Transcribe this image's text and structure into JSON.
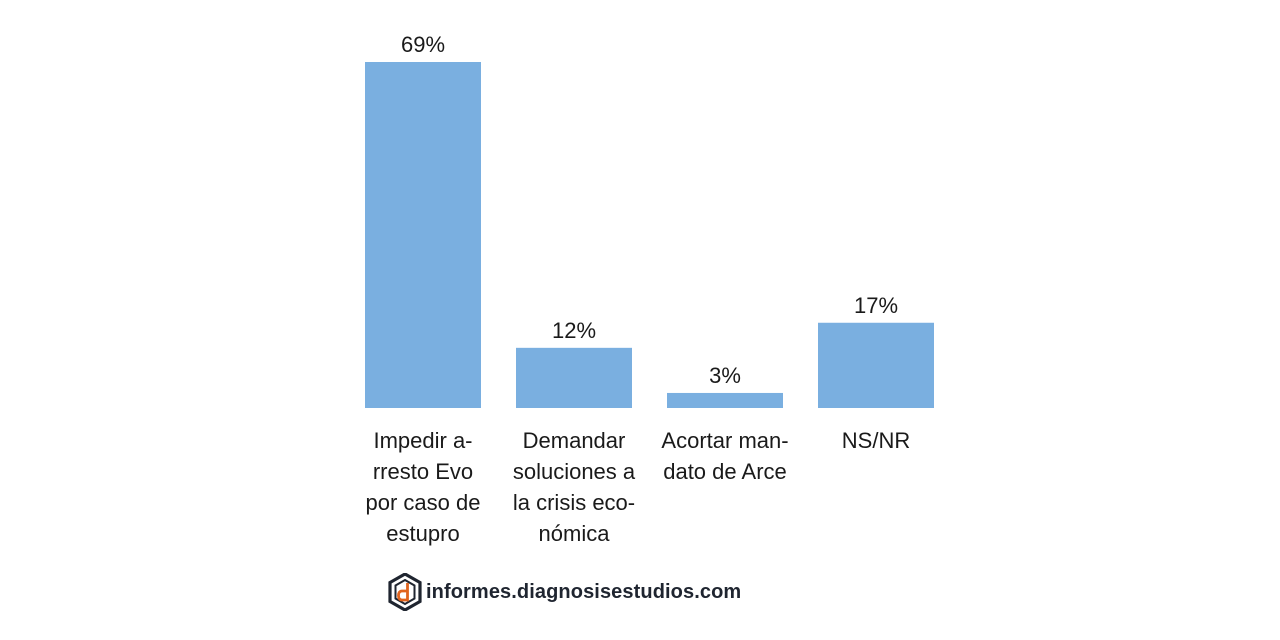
{
  "chart_data": {
    "type": "bar",
    "categories": [
      [
        "Impedir a-",
        "rresto Evo",
        "por caso de",
        "estupro"
      ],
      [
        "Demandar",
        "soluciones a",
        "la crisis eco-",
        "nómica"
      ],
      [
        "Acortar man-",
        "dato de Arce"
      ],
      [
        "NS/NR"
      ]
    ],
    "values": [
      69,
      12,
      3,
      17
    ],
    "value_labels": [
      "69%",
      "12%",
      "3%",
      "17%"
    ],
    "unit": "%",
    "ylim": [
      0,
      69
    ],
    "grid": false,
    "bar_color": "#7aafe0"
  },
  "footer": {
    "site": "informes.diagnosisestudios.com",
    "logo_icon": "diagnosis-logo-icon",
    "logo_colors": [
      "#1f2530",
      "#e0641e"
    ]
  }
}
